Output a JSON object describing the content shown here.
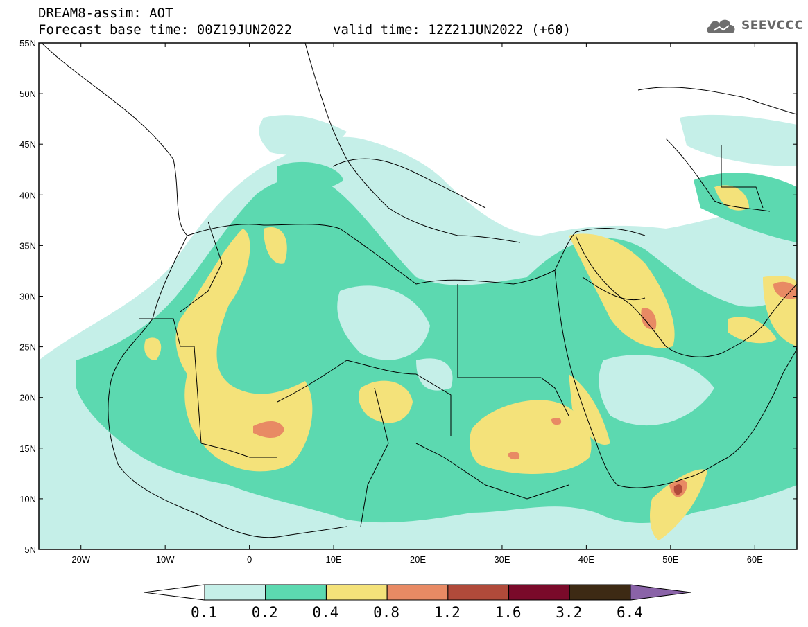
{
  "header": {
    "title": "DREAM8-assim: AOT",
    "base_time": "Forecast base time: 00Z19JUN2022",
    "valid_time": "valid time: 12Z21JUN2022 (+60)"
  },
  "logo": {
    "text": "SEEVCCC",
    "icon": "cloud-logo-icon"
  },
  "map": {
    "lat_labels": [
      "55N",
      "50N",
      "45N",
      "40N",
      "35N",
      "30N",
      "25N",
      "20N",
      "15N",
      "10N",
      "5N"
    ],
    "lon_labels": [
      "20W",
      "10W",
      "0",
      "10E",
      "20E",
      "30E",
      "40E",
      "50E",
      "60E"
    ],
    "lat_range": [
      5,
      55
    ],
    "lon_range": [
      -25,
      65
    ]
  },
  "colorbar": {
    "labels": [
      "0.1",
      "0.2",
      "0.4",
      "0.8",
      "1.2",
      "1.6",
      "3.2",
      "6.4"
    ],
    "colors": [
      "#ffffff",
      "#c5efe8",
      "#5cd9b0",
      "#f4e27a",
      "#e88a64",
      "#b04a3a",
      "#7a0a2a",
      "#3d2a14",
      "#8a63a8"
    ]
  }
}
